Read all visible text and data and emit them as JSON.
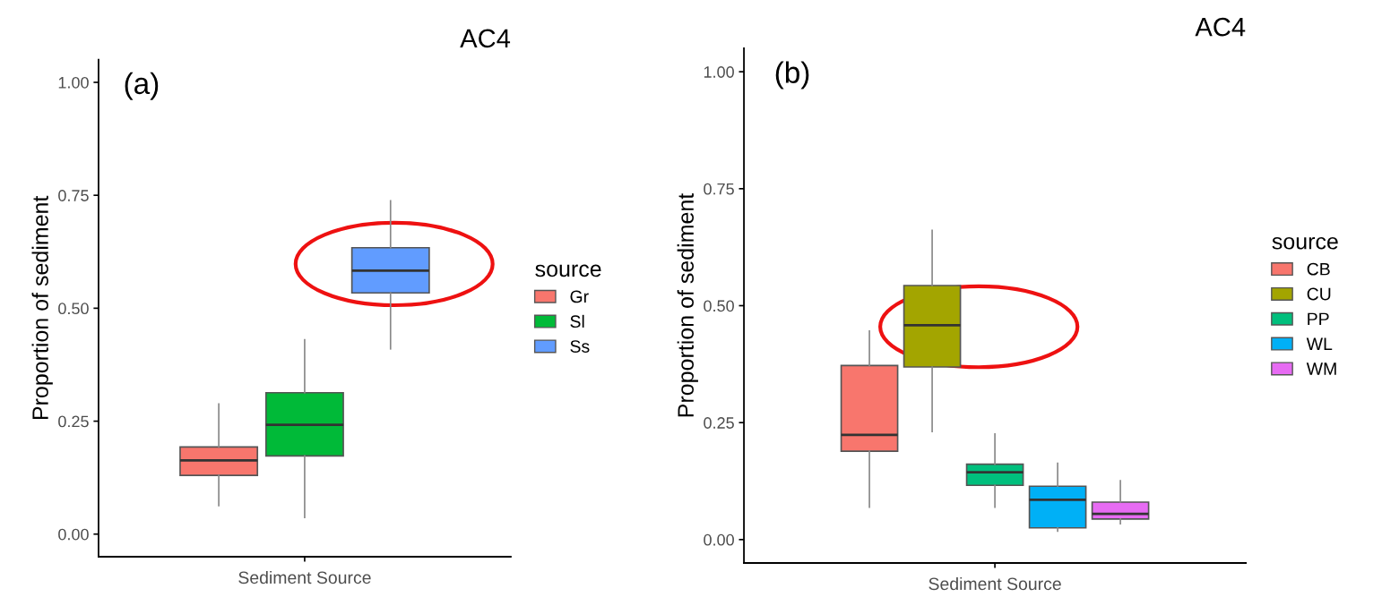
{
  "chart_data": [
    {
      "type": "box",
      "title": "AC4",
      "xlabel": "Sediment Source",
      "ylabel": "Proportion of sediment",
      "legend_title": "source",
      "annotations": [
        "(a)"
      ],
      "categories": [
        null
      ],
      "ylim": [
        -0.05,
        1.05
      ],
      "yticks": [
        {
          "value": 0,
          "label": "0.00"
        },
        {
          "value": 0.25,
          "label": "0.25"
        },
        {
          "value": 0.5,
          "label": "0.50"
        },
        {
          "value": 0.75,
          "label": "0.75"
        },
        {
          "value": 1,
          "label": "1.00"
        }
      ],
      "grid": false,
      "legend": "right",
      "series": [
        {
          "name": "Gr",
          "color": "#f8766d",
          "boxes": [
            {
              "low": 0.063,
              "q1": 0.13,
              "median": 0.163,
              "q3": 0.193,
              "high": 0.288
            }
          ]
        },
        {
          "name": "Sl",
          "color": "#00ba38",
          "boxes": [
            {
              "low": 0.037,
              "q1": 0.173,
              "median": 0.242,
              "q3": 0.313,
              "high": 0.43
            }
          ]
        },
        {
          "name": "Ss",
          "color": "#619cff",
          "boxes": [
            {
              "low": 0.41,
              "q1": 0.534,
              "median": 0.583,
              "q3": 0.634,
              "high": 0.738
            }
          ]
        }
      ]
    },
    {
      "type": "box",
      "title": "AC4",
      "xlabel": "Sediment Source",
      "ylabel": "Proportion of sediment",
      "legend_title": "source",
      "annotations": [
        "(b)"
      ],
      "categories": [
        null
      ],
      "ylim": [
        -0.05,
        1.05
      ],
      "yticks": [
        {
          "value": 0,
          "label": "0.00"
        },
        {
          "value": 0.25,
          "label": "0.25"
        },
        {
          "value": 0.5,
          "label": "0.50"
        },
        {
          "value": 0.75,
          "label": "0.75"
        },
        {
          "value": 1,
          "label": "1.00"
        }
      ],
      "grid": false,
      "legend": "right",
      "series": [
        {
          "name": "CB",
          "color": "#f8766d",
          "boxes": [
            {
              "low": 0.069,
              "q1": 0.189,
              "median": 0.224,
              "q3": 0.372,
              "high": 0.446
            }
          ]
        },
        {
          "name": "CU",
          "color": "#a3a500",
          "boxes": [
            {
              "low": 0.231,
              "q1": 0.369,
              "median": 0.458,
              "q3": 0.543,
              "high": 0.661
            }
          ]
        },
        {
          "name": "PP",
          "color": "#00bf7d",
          "boxes": [
            {
              "low": 0.069,
              "q1": 0.116,
              "median": 0.144,
              "q3": 0.161,
              "high": 0.226
            }
          ]
        },
        {
          "name": "WL",
          "color": "#00b0f6",
          "boxes": [
            {
              "low": 0.018,
              "q1": 0.025,
              "median": 0.085,
              "q3": 0.114,
              "high": 0.163
            }
          ]
        },
        {
          "name": "WM",
          "color": "#e76bf3",
          "boxes": [
            {
              "low": 0.034,
              "q1": 0.044,
              "median": 0.055,
              "q3": 0.08,
              "high": 0.126
            }
          ]
        }
      ]
    }
  ]
}
